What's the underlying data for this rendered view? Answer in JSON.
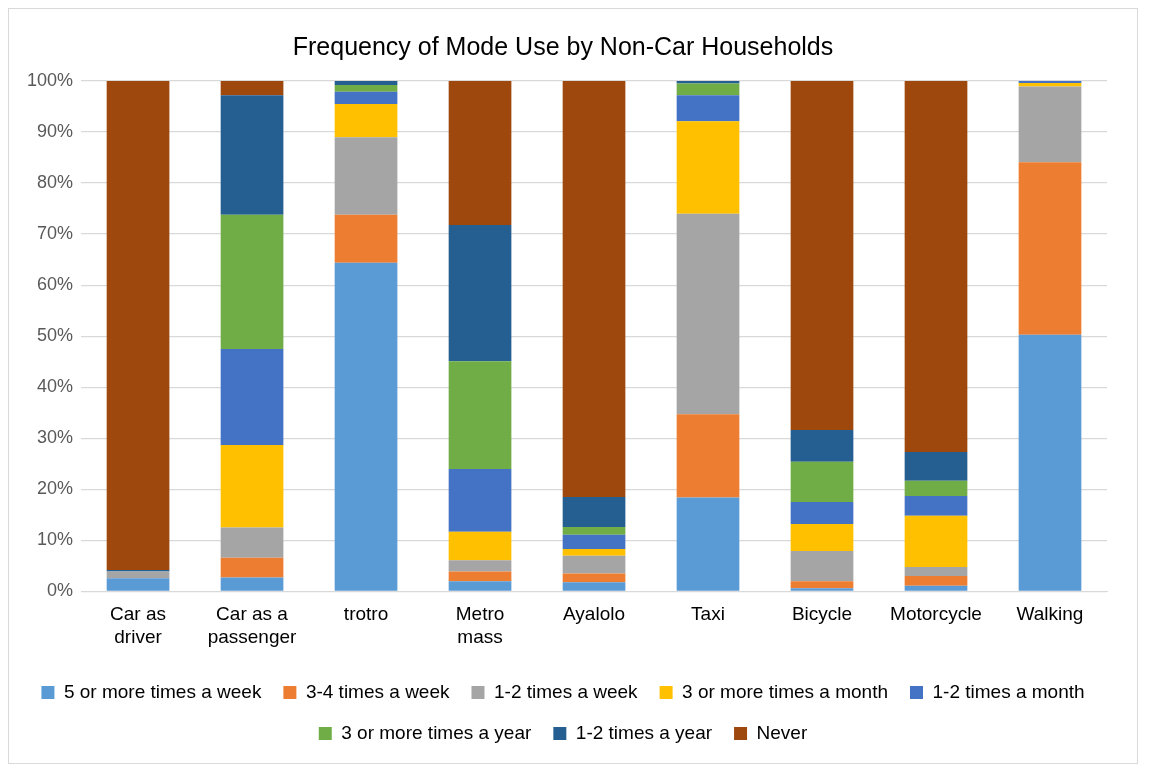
{
  "chart_data": {
    "type": "bar",
    "title": "Frequency of Mode Use by Non-Car Households",
    "stacked": true,
    "categories": [
      "Car as driver",
      "Car as a passenger",
      "trotro",
      "Metro mass",
      "Ayalolo",
      "Taxi",
      "Bicycle",
      "Motorcycle",
      "Walking"
    ],
    "series": [
      {
        "name": "5 or more times a week",
        "color": "#5b9bd5",
        "values": [
          2.6,
          2.7,
          64.4,
          2.0,
          1.8,
          18.4,
          0.6,
          1.1,
          50.3
        ]
      },
      {
        "name": "3-4 times a week",
        "color": "#ed7d31",
        "values": [
          0,
          3.9,
          9.4,
          1.9,
          1.7,
          16.3,
          1.4,
          1.9,
          33.8
        ]
      },
      {
        "name": "1-2 times a week",
        "color": "#a5a5a5",
        "values": [
          1.3,
          5.9,
          15.2,
          2.2,
          3.5,
          39.3,
          5.9,
          1.8,
          14.8
        ]
      },
      {
        "name": "3 or more times a month",
        "color": "#ffc000",
        "values": [
          0,
          16.2,
          6.5,
          5.6,
          1.3,
          18.1,
          5.3,
          10.0,
          0.7
        ]
      },
      {
        "name": "1-2 times a month",
        "color": "#4472c4",
        "values": [
          0,
          18.8,
          2.4,
          12.3,
          2.8,
          5.1,
          4.3,
          3.9,
          0.4
        ]
      },
      {
        "name": "3 or more times a year",
        "color": "#70ad47",
        "values": [
          0,
          26.3,
          1.3,
          21.1,
          1.5,
          2.3,
          7.9,
          3.0,
          0
        ]
      },
      {
        "name": "1-2 times a year",
        "color": "#255e91",
        "values": [
          0.3,
          23.4,
          0.8,
          26.7,
          5.9,
          0.5,
          6.2,
          5.6,
          0
        ]
      },
      {
        "name": "Never",
        "color": "#9e480e",
        "values": [
          95.8,
          2.8,
          0,
          28.2,
          81.5,
          0,
          68.4,
          72.7,
          0
        ]
      }
    ],
    "ylim": [
      0,
      100
    ],
    "yticks": [
      {
        "value": 0,
        "label": "0%"
      },
      {
        "value": 10,
        "label": "10%"
      },
      {
        "value": 20,
        "label": "20%"
      },
      {
        "value": 30,
        "label": "30%"
      },
      {
        "value": 40,
        "label": "40%"
      },
      {
        "value": 50,
        "label": "50%"
      },
      {
        "value": 60,
        "label": "60%"
      },
      {
        "value": 70,
        "label": "70%"
      },
      {
        "value": 80,
        "label": "80%"
      },
      {
        "value": 90,
        "label": "90%"
      },
      {
        "value": 100,
        "label": "100%"
      }
    ],
    "grid": "y",
    "legend": "bottom"
  }
}
